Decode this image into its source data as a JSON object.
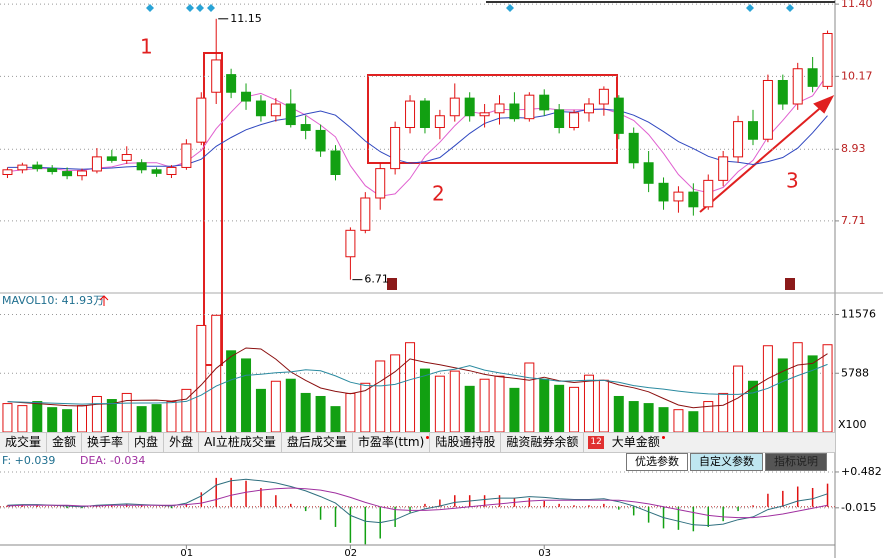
{
  "chart_data": [
    {
      "type": "candlestick",
      "categories": [
        null,
        null,
        null,
        null,
        null,
        null,
        null,
        null,
        null,
        null,
        null,
        null,
        "01",
        null,
        null,
        null,
        null,
        null,
        null,
        null,
        null,
        null,
        null,
        "02",
        null,
        null,
        null,
        null,
        null,
        null,
        null,
        null,
        null,
        null,
        null,
        null,
        "03",
        null,
        null,
        null,
        null,
        null,
        null,
        null,
        null,
        null,
        null,
        null,
        null,
        null,
        null,
        null,
        null,
        null,
        null,
        null
      ],
      "ohlc": [
        [
          8.5,
          8.62,
          8.44,
          8.58
        ],
        [
          8.58,
          8.7,
          8.52,
          8.66
        ],
        [
          8.66,
          8.72,
          8.55,
          8.6
        ],
        [
          8.6,
          8.66,
          8.5,
          8.55
        ],
        [
          8.55,
          8.62,
          8.42,
          8.48
        ],
        [
          8.48,
          8.6,
          8.4,
          8.56
        ],
        [
          8.56,
          8.95,
          8.52,
          8.8
        ],
        [
          8.8,
          8.92,
          8.7,
          8.74
        ],
        [
          8.74,
          8.98,
          8.68,
          8.84
        ],
        [
          8.7,
          8.76,
          8.52,
          8.58
        ],
        [
          8.58,
          8.62,
          8.46,
          8.52
        ],
        [
          8.5,
          8.66,
          8.44,
          8.62
        ],
        [
          8.62,
          9.1,
          8.58,
          9.02
        ],
        [
          9.05,
          9.9,
          9.0,
          9.8
        ],
        [
          9.9,
          11.15,
          9.7,
          10.45
        ],
        [
          10.2,
          10.3,
          9.8,
          9.9
        ],
        [
          9.9,
          10.05,
          9.6,
          9.75
        ],
        [
          9.75,
          9.85,
          9.4,
          9.5
        ],
        [
          9.5,
          9.8,
          9.4,
          9.7
        ],
        [
          9.7,
          9.95,
          9.3,
          9.35
        ],
        [
          9.35,
          9.5,
          9.1,
          9.25
        ],
        [
          9.25,
          9.35,
          8.8,
          8.9
        ],
        [
          8.9,
          9.0,
          8.4,
          8.5
        ],
        [
          7.1,
          7.6,
          6.71,
          7.55
        ],
        [
          7.55,
          8.2,
          7.5,
          8.1
        ],
        [
          8.1,
          8.7,
          7.9,
          8.6
        ],
        [
          8.6,
          9.4,
          8.5,
          9.3
        ],
        [
          9.3,
          9.85,
          9.2,
          9.75
        ],
        [
          9.75,
          9.8,
          9.2,
          9.3
        ],
        [
          9.3,
          9.6,
          9.1,
          9.5
        ],
        [
          9.5,
          10.05,
          9.4,
          9.8
        ],
        [
          9.8,
          9.9,
          9.4,
          9.5
        ],
        [
          9.5,
          9.7,
          9.3,
          9.55
        ],
        [
          9.55,
          9.85,
          9.35,
          9.7
        ],
        [
          9.7,
          9.9,
          9.4,
          9.45
        ],
        [
          9.45,
          9.9,
          9.4,
          9.85
        ],
        [
          9.85,
          9.95,
          9.5,
          9.6
        ],
        [
          9.6,
          9.7,
          9.2,
          9.3
        ],
        [
          9.3,
          9.6,
          9.25,
          9.55
        ],
        [
          9.55,
          9.8,
          9.4,
          9.7
        ],
        [
          9.7,
          10.0,
          9.5,
          9.95
        ],
        [
          9.8,
          9.85,
          9.1,
          9.2
        ],
        [
          9.2,
          9.3,
          8.6,
          8.7
        ],
        [
          8.7,
          8.9,
          8.2,
          8.35
        ],
        [
          8.35,
          8.45,
          7.9,
          8.05
        ],
        [
          8.05,
          8.3,
          7.85,
          8.2
        ],
        [
          8.2,
          8.35,
          7.8,
          7.95
        ],
        [
          7.95,
          8.5,
          7.9,
          8.4
        ],
        [
          8.4,
          8.9,
          8.3,
          8.8
        ],
        [
          8.8,
          9.5,
          8.7,
          9.4
        ],
        [
          9.4,
          9.6,
          9.0,
          9.1
        ],
        [
          9.1,
          10.2,
          9.05,
          10.1
        ],
        [
          10.1,
          10.2,
          9.6,
          9.7
        ],
        [
          9.7,
          10.4,
          9.6,
          10.3
        ],
        [
          10.3,
          10.5,
          9.9,
          10.0
        ],
        [
          10.0,
          10.95,
          9.95,
          10.9
        ]
      ],
      "up_color": "#e01010",
      "down_color": "#12a012",
      "series": [
        {
          "color": "#e060d0",
          "values": [
            8.55,
            8.58,
            8.6,
            8.6,
            8.57,
            8.57,
            8.61,
            8.63,
            8.69,
            8.7,
            8.7,
            8.62,
            8.72,
            8.91,
            9.28,
            9.56,
            9.82,
            9.88,
            9.77,
            9.64,
            9.51,
            9.34,
            9.14,
            8.65,
            8.31,
            8.13,
            8.17,
            8.43,
            8.81,
            9.05,
            9.33,
            9.57,
            9.53,
            9.61,
            9.6,
            9.61,
            9.63,
            9.6,
            9.6,
            9.6,
            9.62,
            9.54,
            9.42,
            9.18,
            8.86,
            8.5,
            8.25,
            8.19,
            8.28,
            8.55,
            8.74,
            9.14,
            9.42,
            9.72,
            9.84,
            10.2
          ]
        },
        {
          "color": "#3048c0",
          "values": [
            8.62,
            8.62,
            8.62,
            8.61,
            8.6,
            8.59,
            8.6,
            8.61,
            8.63,
            8.64,
            8.64,
            8.64,
            8.67,
            8.76,
            8.98,
            9.13,
            9.26,
            9.35,
            9.42,
            9.46,
            9.53,
            9.58,
            9.51,
            9.3,
            9.07,
            8.89,
            8.76,
            8.69,
            8.72,
            8.79,
            8.99,
            9.2,
            9.37,
            9.46,
            9.47,
            9.46,
            9.5,
            9.57,
            9.56,
            9.61,
            9.61,
            9.59,
            9.51,
            9.39,
            9.23,
            9.06,
            8.94,
            8.81,
            8.73,
            8.71,
            8.67,
            8.72,
            8.79,
            8.95,
            9.21,
            9.5
          ]
        }
      ],
      "ylim": [
        6.5,
        11.47
      ],
      "yticks": [
        {
          "value": 11.4,
          "label": "11.40"
        },
        10.17,
        8.93,
        7.71
      ],
      "grid": true,
      "annotations": [
        "1",
        "2",
        "3"
      ]
    },
    {
      "type": "volume",
      "title": "MAVOL10: 41.93万",
      "unit_label": "X100",
      "values": [
        2800,
        2600,
        3000,
        2400,
        2200,
        2600,
        3500,
        3200,
        3800,
        2500,
        2700,
        3000,
        4200,
        10500,
        11500,
        8000,
        7200,
        4200,
        5000,
        5200,
        3800,
        3500,
        2500,
        3800,
        4800,
        7000,
        7600,
        8800,
        6200,
        5500,
        6000,
        4500,
        5200,
        5500,
        4300,
        6800,
        5200,
        4600,
        4400,
        5600,
        5100,
        3500,
        3000,
        2800,
        2400,
        2200,
        2000,
        3000,
        3800,
        6500,
        5000,
        8500,
        7200,
        8800,
        7500,
        8600
      ],
      "series": [
        {
          "color": "#8b1010",
          "values": [
            3000,
            2900,
            2800,
            2700,
            2600,
            2560,
            2740,
            2780,
            3100,
            3120,
            3140,
            3040,
            3240,
            4640,
            6280,
            7440,
            8280,
            8180,
            7180,
            5920,
            5080,
            4340,
            4000,
            3760,
            4080,
            4980,
            5940,
            7200,
            6880,
            6620,
            6340,
            6040,
            5680,
            5450,
            5300,
            5100,
            5400,
            5060,
            4880,
            5020,
            5100,
            4640,
            4360,
            3960,
            3300,
            2660,
            2380,
            2520,
            2640,
            3360,
            4380,
            5260,
            5980,
            6600,
            6760,
            7720
          ]
        },
        {
          "color": "#2a8aa0",
          "values": [
            3000,
            2950,
            2900,
            2850,
            2800,
            2750,
            2800,
            2800,
            2850,
            2860,
            2860,
            2900,
            3020,
            3640,
            4520,
            5130,
            5590,
            5690,
            5840,
            5920,
            6140,
            6030,
            5530,
            4910,
            4580,
            4540,
            4690,
            5150,
            5550,
            6000,
            6180,
            6530,
            6100,
            5820,
            5600,
            5350,
            5200,
            5000,
            5050,
            5100,
            5080,
            4900,
            4570,
            4380,
            4230,
            4030,
            3860,
            3750,
            3710,
            3710,
            3850,
            4310,
            4980,
            5560,
            6080,
            6660
          ]
        }
      ],
      "ylim": [
        0,
        13500
      ],
      "yticks": [
        5788,
        11576
      ],
      "grid": true
    },
    {
      "type": "macd",
      "dif_label": "F: +0.039",
      "dea_label": "DEA: -0.034",
      "values": [
        0.02,
        0.02,
        0.02,
        0,
        -0.02,
        -0.02,
        0.02,
        0.02,
        0.04,
        0.02,
        0,
        -0.02,
        0.04,
        0.2,
        0.4,
        0.4,
        0.36,
        0.26,
        0.16,
        0.04,
        -0.06,
        -0.18,
        -0.28,
        -0.5,
        -0.52,
        -0.44,
        -0.28,
        -0.08,
        0.04,
        0.1,
        0.16,
        0.16,
        0.16,
        0.16,
        0.12,
        0.12,
        0.08,
        0.04,
        0.02,
        0.02,
        0.04,
        -0.04,
        -0.12,
        -0.22,
        -0.3,
        -0.32,
        -0.34,
        -0.28,
        -0.2,
        -0.06,
        0.02,
        0.18,
        0.22,
        0.28,
        0.26,
        0.32
      ],
      "series": [
        {
          "color": "#2f6f7f",
          "values": [
            0.02,
            0.03,
            0.03,
            0.02,
            0.01,
            0.0,
            0.02,
            0.03,
            0.04,
            0.03,
            0.02,
            0.01,
            0.05,
            0.15,
            0.3,
            0.36,
            0.38,
            0.36,
            0.33,
            0.28,
            0.22,
            0.14,
            0.05,
            -0.12,
            -0.2,
            -0.22,
            -0.18,
            -0.09,
            -0.03,
            0.01,
            0.06,
            0.08,
            0.1,
            0.12,
            0.12,
            0.14,
            0.13,
            0.11,
            0.1,
            0.1,
            0.11,
            0.07,
            0.01,
            -0.07,
            -0.15,
            -0.2,
            -0.25,
            -0.26,
            -0.24,
            -0.18,
            -0.14,
            -0.04,
            0.01,
            0.08,
            0.11,
            0.18
          ]
        },
        {
          "color": "#a030a0",
          "values": [
            0.01,
            0.02,
            0.02,
            0.02,
            0.02,
            0.01,
            0.01,
            0.02,
            0.02,
            0.02,
            0.02,
            0.02,
            0.03,
            0.05,
            0.1,
            0.16,
            0.2,
            0.23,
            0.25,
            0.26,
            0.25,
            0.23,
            0.19,
            0.13,
            0.06,
            0.0,
            -0.04,
            -0.05,
            -0.05,
            -0.04,
            -0.02,
            0.0,
            0.02,
            0.04,
            0.06,
            0.08,
            0.09,
            0.09,
            0.09,
            0.09,
            0.09,
            0.09,
            0.07,
            0.04,
            0.0,
            -0.04,
            -0.08,
            -0.12,
            -0.14,
            -0.15,
            -0.15,
            -0.13,
            -0.1,
            -0.06,
            -0.02,
            0.02
          ]
        }
      ],
      "ylim": [
        -0.53,
        0.62
      ],
      "yticks": [
        {
          "value": 0.482,
          "label": "+0.482"
        },
        -0.015
      ],
      "grid": true
    }
  ],
  "tabs": [
    "成交量",
    "金额",
    "换手率",
    "内盘",
    "外盘",
    "AI立桩成交量",
    "盘后成交量",
    "市盈率(ttm)",
    "陆股通持股",
    "融资融券余额",
    "大单金额"
  ],
  "badge": "12",
  "buttons": [
    "优选参数",
    "自定义参数",
    "指标说明"
  ]
}
